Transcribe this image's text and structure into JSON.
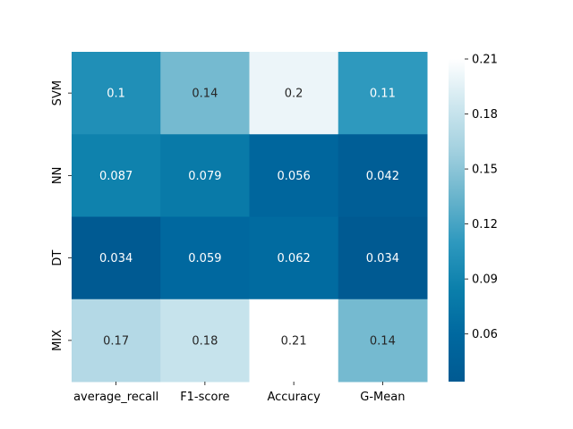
{
  "chart_data": {
    "type": "heatmap",
    "title": "",
    "xlabel": "",
    "ylabel": "",
    "columns": [
      "average_recall",
      "F1-score",
      "Accuracy",
      "G-Mean"
    ],
    "rows": [
      "SVM",
      "NN",
      "DT",
      "MIX"
    ],
    "values": [
      [
        0.1,
        0.14,
        0.2,
        0.11
      ],
      [
        0.087,
        0.079,
        0.056,
        0.042
      ],
      [
        0.034,
        0.059,
        0.062,
        0.034
      ],
      [
        0.17,
        0.18,
        0.21,
        0.14
      ]
    ],
    "annotations": [
      [
        "0.1",
        "0.14",
        "0.2",
        "0.11"
      ],
      [
        "0.087",
        "0.079",
        "0.056",
        "0.042"
      ],
      [
        "0.034",
        "0.059",
        "0.062",
        "0.034"
      ],
      [
        "0.17",
        "0.18",
        "0.21",
        "0.14"
      ]
    ],
    "colorbar": {
      "range": [
        0.034,
        0.21
      ],
      "ticks": [
        0.06,
        0.09,
        0.12,
        0.15,
        0.18,
        0.21
      ],
      "tick_labels": [
        "0.06",
        "0.09",
        "0.12",
        "0.15",
        "0.18",
        "0.21"
      ],
      "colormap": [
        "#005a92",
        "#00689f",
        "#0b7fab",
        "#2d98be",
        "#69b4cc",
        "#a2d0df",
        "#ceE7ef",
        "#ffffff"
      ]
    }
  }
}
